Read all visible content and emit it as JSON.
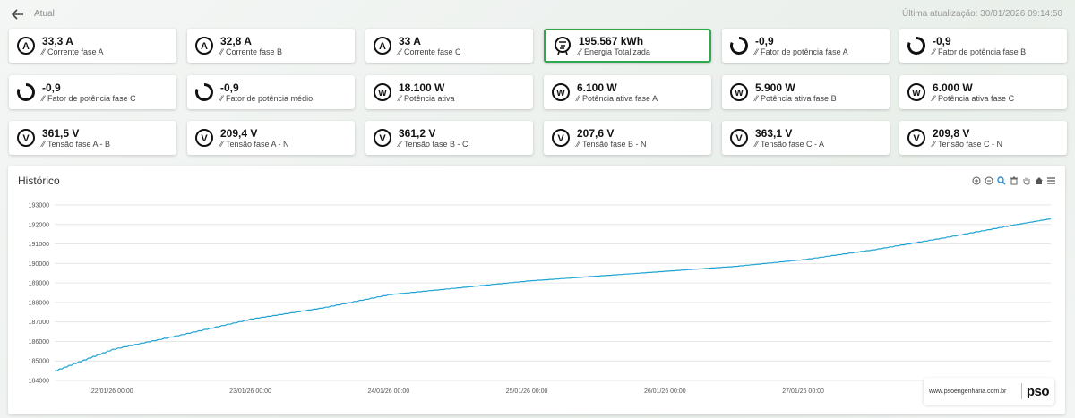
{
  "header": {
    "breadcrumb": "Atual",
    "last_update": "Última atualização: 30/01/2026 09:14:50"
  },
  "cards": [
    {
      "value": "33,3 A",
      "label": "Corrente fase A",
      "icon": "ampere-icon"
    },
    {
      "value": "32,8 A",
      "label": "Corrente fase B",
      "icon": "ampere-icon"
    },
    {
      "value": "33 A",
      "label": "Corrente fase C",
      "icon": "ampere-icon"
    },
    {
      "value": "195.567 kWh",
      "label": "Energia Totalizada",
      "icon": "energy-meter-icon"
    },
    {
      "value": "-0,9",
      "label": "Fator de potência fase A",
      "icon": "power-factor-gauge-icon"
    },
    {
      "value": "-0,9",
      "label": "Fator de potência fase B",
      "icon": "power-factor-gauge-icon"
    },
    {
      "value": "-0,9",
      "label": "Fator de potência fase C",
      "icon": "power-factor-gauge-icon"
    },
    {
      "value": "-0,9",
      "label": "Fator de potência médio",
      "icon": "power-factor-gauge-icon"
    },
    {
      "value": "18.100 W",
      "label": "Potência ativa",
      "icon": "watt-icon"
    },
    {
      "value": "6.100 W",
      "label": "Potência ativa fase A",
      "icon": "watt-icon"
    },
    {
      "value": "5.900 W",
      "label": "Potência ativa fase B",
      "icon": "watt-icon"
    },
    {
      "value": "6.000 W",
      "label": "Potência ativa fase C",
      "icon": "watt-icon"
    },
    {
      "value": "361,5 V",
      "label": "Tensão fase A - B",
      "icon": "volt-icon"
    },
    {
      "value": "209,4 V",
      "label": "Tensão fase A - N",
      "icon": "volt-icon"
    },
    {
      "value": "361,2 V",
      "label": "Tensão fase B - C",
      "icon": "volt-icon"
    },
    {
      "value": "207,6 V",
      "label": "Tensão fase B - N",
      "icon": "volt-icon"
    },
    {
      "value": "363,1 V",
      "label": "Tensão fase C - A",
      "icon": "volt-icon"
    },
    {
      "value": "209,8 V",
      "label": "Tensão fase C - N",
      "icon": "volt-icon"
    }
  ],
  "highlight_color": "#2fa84f",
  "chart": {
    "title": "Histórico",
    "toolbar_icons": [
      "zoom-in-icon",
      "zoom-out-icon",
      "magnifier-zoom-icon",
      "trash-icon",
      "pan-hand-icon",
      "home-reset-icon",
      "menu-icon"
    ],
    "line_color": "#1fa3d1"
  },
  "chart_data": {
    "type": "line",
    "title": "Histórico",
    "xlabel": "",
    "ylabel": "",
    "x_ticks": [
      "22/01/26 00:00",
      "23/01/26 00:00",
      "24/01/26 00:00",
      "25/01/26 00:00",
      "26/01/26 00:00",
      "27/01/26 00:00"
    ],
    "y_ticks": [
      184000,
      185000,
      186000,
      187000,
      188000,
      189000,
      190000,
      191000,
      192000,
      193000
    ],
    "ylim": [
      184000,
      193000
    ],
    "xlim": [
      "21/01/26 14:00",
      "28/01/26 19:00"
    ],
    "grid": true,
    "series": [
      {
        "x": [
          "21/01/26 14:00",
          "22/01/26 00:00",
          "22/01/26 12:00",
          "23/01/26 00:00",
          "23/01/26 12:00",
          "24/01/26 00:00",
          "24/01/26 12:00",
          "25/01/26 00:00",
          "25/01/26 12:00",
          "26/01/26 00:00",
          "26/01/26 12:00",
          "27/01/26 00:00",
          "27/01/26 12:00",
          "28/01/26 00:00",
          "28/01/26 12:00",
          "28/01/26 19:00"
        ],
        "y": [
          184500,
          185600,
          186350,
          187150,
          187700,
          188400,
          188750,
          189100,
          189350,
          189600,
          189850,
          190200,
          190700,
          191300,
          191950,
          192300
        ]
      }
    ]
  },
  "brand": {
    "url": "www.psoengenharia.com.br",
    "logo": "pso"
  }
}
